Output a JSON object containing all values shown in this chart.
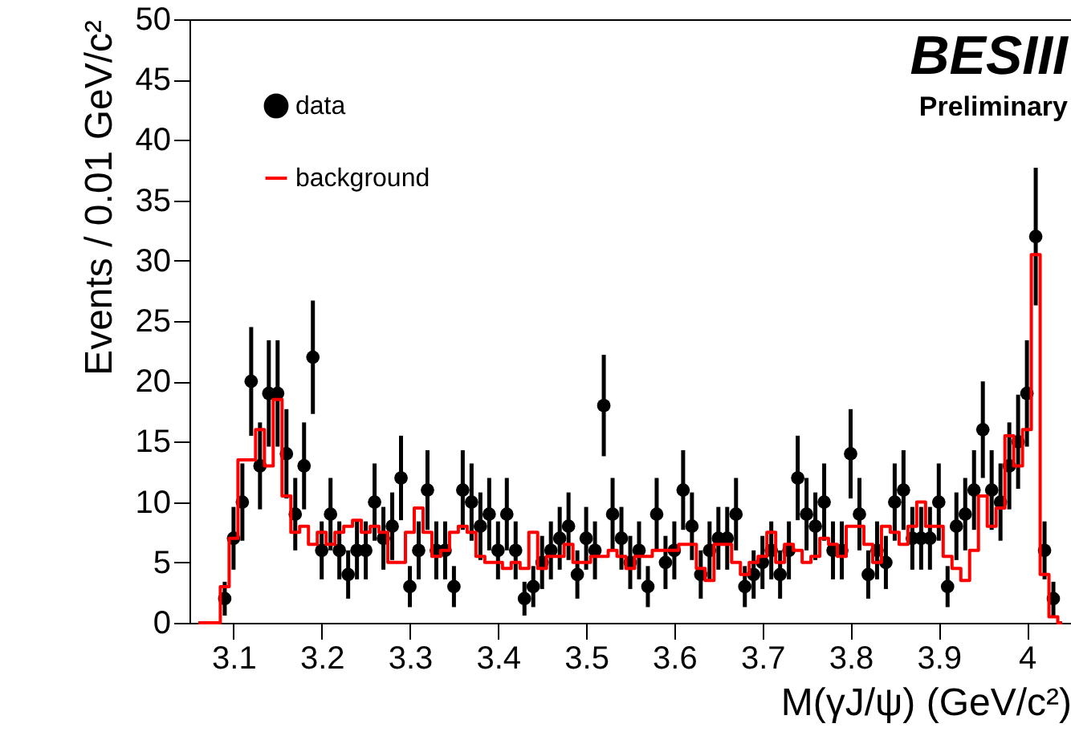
{
  "chart_data": {
    "type": "scatter",
    "xlabel": "M(γJ/ψ) (GeV/c²)",
    "ylabel": "Events / 0.01 GeV/c²",
    "annotations": [
      "BESIII",
      "Preliminary"
    ],
    "xlim": [
      3.05,
      4.05
    ],
    "xticks": [
      3.1,
      3.2,
      3.3,
      3.4,
      3.5,
      3.6,
      3.7,
      3.8,
      3.9,
      4
    ],
    "ylim": [
      0,
      50
    ],
    "yticks": [
      0,
      5,
      10,
      15,
      20,
      25,
      30,
      35,
      40,
      45,
      50
    ],
    "grid": false,
    "legend": "top left",
    "series": [
      {
        "name": "data",
        "type": "scatter",
        "marker": "circle",
        "color": "#000000",
        "x": [
          3.09,
          3.1,
          3.11,
          3.12,
          3.13,
          3.14,
          3.15,
          3.16,
          3.17,
          3.18,
          3.19,
          3.2,
          3.21,
          3.22,
          3.23,
          3.24,
          3.25,
          3.26,
          3.27,
          3.28,
          3.29,
          3.3,
          3.31,
          3.32,
          3.33,
          3.34,
          3.35,
          3.36,
          3.37,
          3.38,
          3.39,
          3.4,
          3.41,
          3.42,
          3.43,
          3.44,
          3.45,
          3.46,
          3.47,
          3.48,
          3.49,
          3.5,
          3.51,
          3.52,
          3.53,
          3.54,
          3.55,
          3.56,
          3.57,
          3.58,
          3.59,
          3.6,
          3.61,
          3.62,
          3.63,
          3.64,
          3.65,
          3.66,
          3.67,
          3.68,
          3.69,
          3.7,
          3.71,
          3.72,
          3.73,
          3.74,
          3.75,
          3.76,
          3.77,
          3.78,
          3.79,
          3.8,
          3.81,
          3.82,
          3.83,
          3.84,
          3.85,
          3.86,
          3.87,
          3.88,
          3.89,
          3.9,
          3.91,
          3.92,
          3.93,
          3.94,
          3.95,
          3.96,
          3.97,
          3.98,
          3.99,
          4.0,
          4.01,
          4.02,
          4.03
        ],
        "values": [
          2,
          7,
          10,
          20,
          13,
          19,
          19,
          14,
          9,
          13,
          22,
          6,
          9,
          6,
          4,
          6,
          6,
          10,
          7,
          8,
          12,
          3,
          6,
          11,
          6,
          6,
          3,
          11,
          10,
          8,
          9,
          6,
          9,
          6,
          2,
          3,
          5,
          6,
          7,
          8,
          4,
          7,
          6,
          18,
          9,
          7,
          5,
          6,
          3,
          9,
          5,
          6,
          11,
          8,
          4,
          6,
          7,
          7,
          9,
          3,
          4,
          5,
          6,
          4,
          6,
          12,
          9,
          8,
          10,
          6,
          6,
          14,
          9,
          4,
          6,
          5,
          10,
          11,
          7,
          7,
          7,
          10,
          3,
          8,
          9,
          11,
          16,
          11,
          10,
          13,
          15,
          19,
          32,
          6,
          2
        ],
        "errors": [
          1.4,
          2.6,
          3.2,
          4.5,
          3.6,
          4.4,
          4.4,
          3.7,
          3,
          3.6,
          4.7,
          2.4,
          3,
          2.4,
          2,
          2.4,
          2.4,
          3.2,
          2.6,
          2.8,
          3.5,
          1.7,
          2.4,
          3.3,
          2.4,
          2.4,
          1.7,
          3.3,
          3.2,
          2.8,
          3,
          2.4,
          3,
          2.4,
          1.4,
          1.7,
          2.2,
          2.4,
          2.6,
          2.8,
          2,
          2.6,
          2.4,
          4.2,
          3,
          2.6,
          2.2,
          2.4,
          1.7,
          3,
          2.2,
          2.4,
          3.3,
          2.8,
          2,
          2.4,
          2.6,
          2.6,
          3,
          1.7,
          2,
          2.2,
          2.4,
          2,
          2.4,
          3.5,
          3,
          2.8,
          3.2,
          2.4,
          2.4,
          3.7,
          3,
          2,
          2.4,
          2.2,
          3.2,
          3.3,
          2.6,
          2.6,
          2.6,
          3.2,
          1.7,
          2.8,
          3,
          3.3,
          4,
          3.3,
          3.2,
          3.6,
          3.9,
          4.4,
          5.7,
          2.4,
          1.4
        ]
      },
      {
        "name": "background",
        "type": "step",
        "marker": "none",
        "color": "#ff0000",
        "x": [
          3.06,
          3.07,
          3.08,
          3.09,
          3.1,
          3.11,
          3.12,
          3.13,
          3.14,
          3.15,
          3.16,
          3.17,
          3.18,
          3.19,
          3.2,
          3.21,
          3.22,
          3.23,
          3.24,
          3.25,
          3.26,
          3.27,
          3.28,
          3.29,
          3.3,
          3.31,
          3.32,
          3.33,
          3.34,
          3.35,
          3.36,
          3.37,
          3.38,
          3.39,
          3.4,
          3.41,
          3.42,
          3.43,
          3.44,
          3.45,
          3.46,
          3.47,
          3.48,
          3.49,
          3.5,
          3.51,
          3.52,
          3.53,
          3.54,
          3.55,
          3.56,
          3.57,
          3.58,
          3.59,
          3.6,
          3.61,
          3.62,
          3.63,
          3.64,
          3.65,
          3.66,
          3.67,
          3.68,
          3.69,
          3.7,
          3.71,
          3.72,
          3.73,
          3.74,
          3.75,
          3.76,
          3.77,
          3.78,
          3.79,
          3.8,
          3.81,
          3.82,
          3.83,
          3.84,
          3.85,
          3.86,
          3.87,
          3.88,
          3.89,
          3.9,
          3.91,
          3.92,
          3.93,
          3.94,
          3.95,
          3.96,
          3.97,
          3.98,
          3.99,
          4.0,
          4.01,
          4.02,
          4.03,
          4.04
        ],
        "values": [
          0,
          0,
          0,
          3,
          7,
          13.5,
          13.5,
          16,
          13,
          18.5,
          10.5,
          7.5,
          8,
          6.5,
          7.5,
          6.5,
          7.5,
          8,
          8.5,
          7.5,
          8,
          7.5,
          5,
          5,
          7.5,
          9.5,
          7.5,
          5.5,
          6,
          7.5,
          8,
          7.5,
          5.5,
          5,
          5,
          4.5,
          5,
          4.5,
          7.5,
          4.5,
          5.5,
          5.5,
          6.5,
          5,
          5,
          5.5,
          5.5,
          6,
          5.5,
          4.5,
          5.5,
          5.5,
          6,
          6,
          6,
          6.5,
          6.5,
          4.5,
          3.5,
          6.5,
          6.5,
          5,
          4,
          5,
          5.5,
          7.5,
          5,
          6.5,
          6,
          5,
          5.5,
          7,
          6.5,
          5.5,
          8,
          8,
          6.5,
          5,
          8,
          7.5,
          6.5,
          8,
          10,
          8,
          8,
          5.5,
          4.5,
          3.5,
          6,
          10.5,
          8,
          9.5,
          15.5,
          13,
          16,
          30.5,
          4,
          0.5,
          0
        ]
      }
    ]
  }
}
